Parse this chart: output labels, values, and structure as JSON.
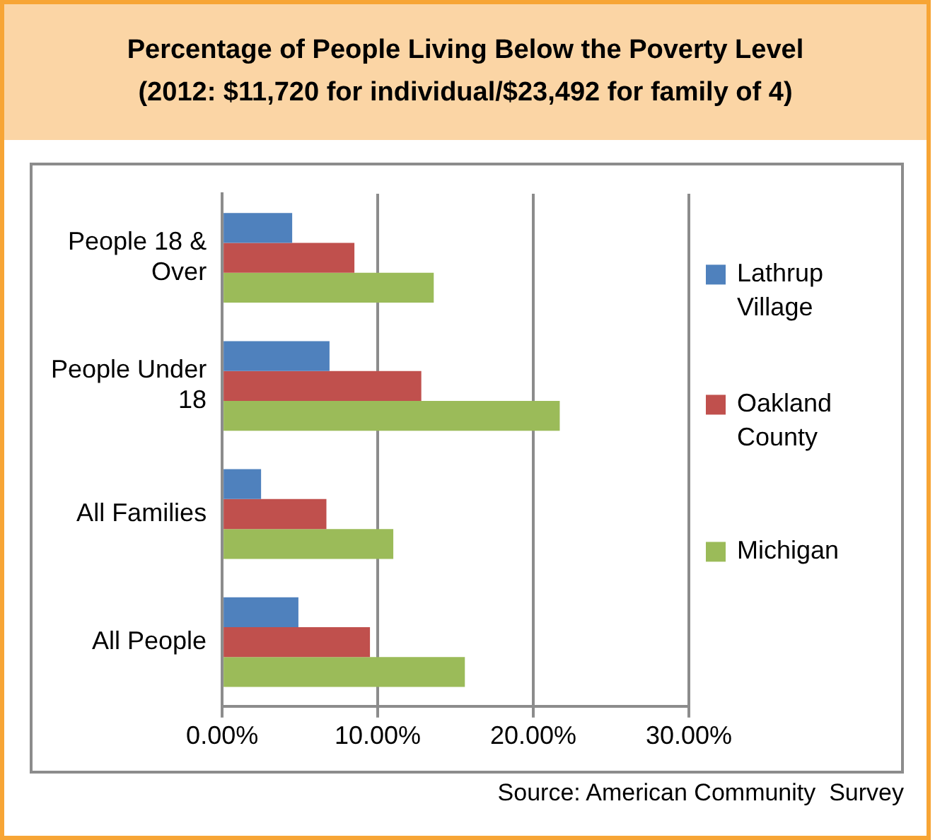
{
  "chart_data": {
    "type": "bar",
    "orientation": "horizontal",
    "title": "Percentage of People Living Below the Poverty Level",
    "subtitle": "(2012: $11,720 for individual/$23,492 for family of 4)",
    "categories": [
      "People 18 & Over",
      "People Under 18",
      "All Families",
      "All People"
    ],
    "series": [
      {
        "name": "Lathrup Village",
        "color": "#4f81bd",
        "values": [
          4.5,
          6.9,
          2.5,
          4.9
        ]
      },
      {
        "name": "Oakland County",
        "color": "#c0504d",
        "values": [
          8.5,
          12.8,
          6.7,
          9.5
        ]
      },
      {
        "name": "Michigan",
        "color": "#9bbb59",
        "values": [
          13.6,
          21.7,
          11.0,
          15.6
        ]
      }
    ],
    "xlim": [
      0,
      30
    ],
    "xticks": [
      {
        "value": 0,
        "label": "0.00%"
      },
      {
        "value": 10,
        "label": "10.00%"
      },
      {
        "value": 20,
        "label": "20.00%"
      },
      {
        "value": 30,
        "label": "30.00%"
      }
    ],
    "grid": "x",
    "legend": "right",
    "annotations": [
      "Source: American Community  Survey"
    ]
  }
}
